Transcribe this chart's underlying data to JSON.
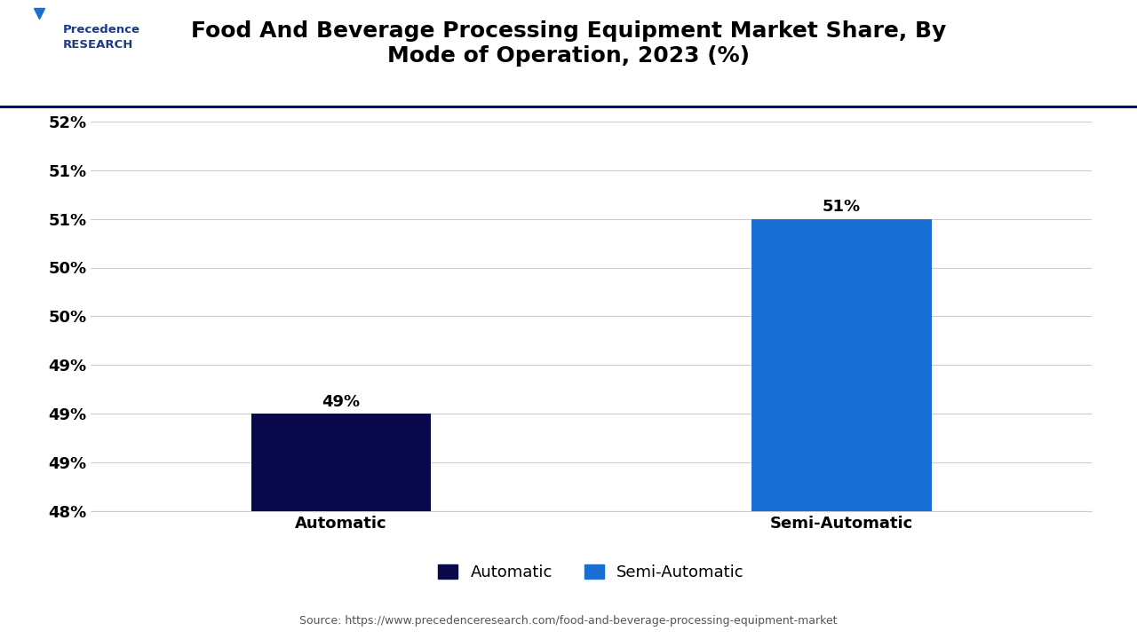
{
  "title": "Food And Beverage Processing Equipment Market Share, By\nMode of Operation, 2023 (%)",
  "categories": [
    "Automatic",
    "Semi-Automatic"
  ],
  "values": [
    49,
    51
  ],
  "bar_colors": [
    "#08084a",
    "#1a6fd4"
  ],
  "bar_width": 0.18,
  "ylim_min": 48,
  "ylim_max": 52,
  "ytick_values": [
    48,
    48.5,
    49,
    49.5,
    50,
    50.5,
    51,
    51.5,
    52
  ],
  "ytick_labels": [
    "48%",
    "49%",
    "49%",
    "49%",
    "50%",
    "50%",
    "51%",
    "51%",
    "52%"
  ],
  "value_labels": [
    "49%",
    "51%"
  ],
  "legend_labels": [
    "Automatic",
    "Semi-Automatic"
  ],
  "legend_colors": [
    "#08084a",
    "#1a6fd4"
  ],
  "source_text": "Source: https://www.precedenceresearch.com/food-and-beverage-processing-equipment-market",
  "title_fontsize": 18,
  "axis_fontsize": 13,
  "label_fontsize": 13,
  "background_color": "#ffffff",
  "grid_color": "#cccccc",
  "bar_label_fontsize": 13,
  "header_line_color": "#0a0a6e",
  "x_positions": [
    0.25,
    0.75
  ]
}
